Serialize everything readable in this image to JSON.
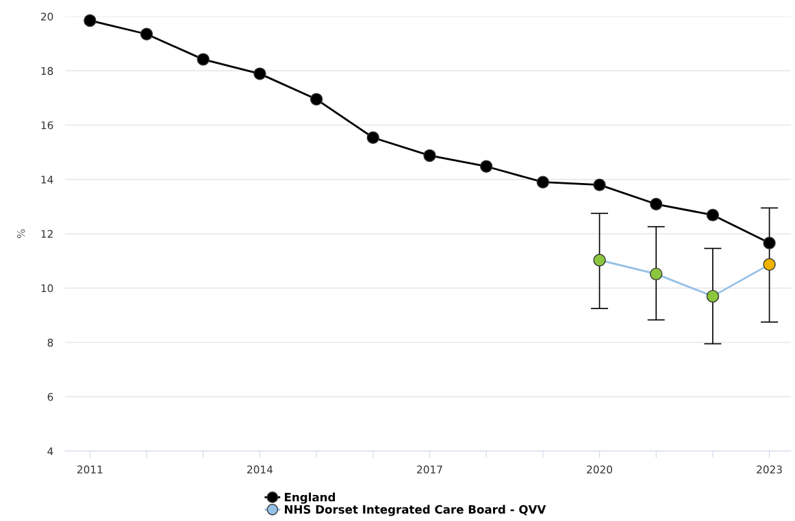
{
  "chart_data": {
    "type": "line",
    "ylabel": "%",
    "x": [
      2011,
      2012,
      2013,
      2014,
      2015,
      2016,
      2017,
      2018,
      2019,
      2020,
      2021,
      2022,
      2023
    ],
    "series": [
      {
        "name": "England",
        "color": "#000000",
        "values": [
          19.85,
          19.35,
          18.42,
          17.89,
          16.95,
          15.54,
          14.88,
          14.48,
          13.9,
          13.8,
          13.09,
          12.69,
          11.66
        ]
      },
      {
        "name": "NHS Dorset Integrated Care Board - QVV",
        "color": "#95c0e6",
        "x": [
          2020,
          2021,
          2022,
          2023
        ],
        "values": [
          11.03,
          10.52,
          9.7,
          10.87
        ],
        "colors": [
          "#8cc63f",
          "#8cc63f",
          "#8cc63f",
          "#f0b400"
        ],
        "errors": [
          [
            9.25,
            12.75
          ],
          [
            8.83,
            12.26
          ],
          [
            7.95,
            11.46
          ],
          [
            8.75,
            12.95
          ]
        ]
      }
    ],
    "xlim": [
      2010.56,
      2023.38
    ],
    "xticks": [
      2011,
      {
        "value": 2012,
        "label": null
      },
      {
        "value": 2013,
        "label": null
      },
      2014,
      {
        "value": 2015,
        "label": null
      },
      {
        "value": 2016,
        "label": null
      },
      2017,
      {
        "value": 2018,
        "label": null
      },
      {
        "value": 2019,
        "label": null
      },
      2020,
      {
        "value": 2021,
        "label": null
      },
      {
        "value": 2022,
        "label": null
      },
      2023
    ],
    "ylim": [
      4,
      20
    ],
    "yticks": [
      4,
      6,
      8,
      10,
      12,
      14,
      16,
      18,
      20
    ],
    "grid": "y",
    "legend": "bottom",
    "marker": "circle",
    "line_style": "solid"
  }
}
